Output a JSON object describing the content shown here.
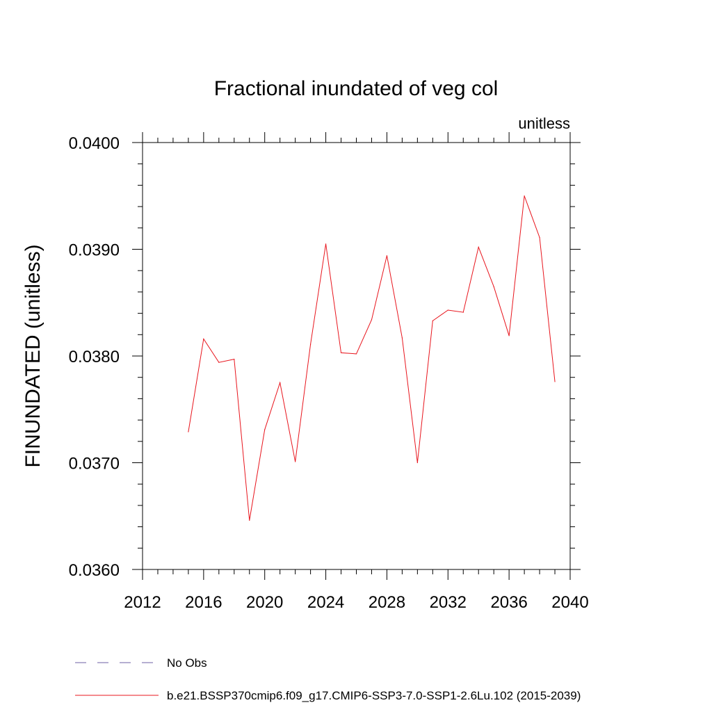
{
  "chart_data": {
    "type": "line",
    "title": "Fractional inundated of veg col",
    "units_label": "unitless",
    "xlabel": "",
    "ylabel": "FINUNDATED  (unitless)",
    "xlim": [
      2012,
      2040
    ],
    "ylim": [
      0.036,
      0.04
    ],
    "x_ticks": [
      2012,
      2016,
      2020,
      2024,
      2028,
      2032,
      2036,
      2040
    ],
    "y_ticks": [
      0.036,
      0.037,
      0.038,
      0.039,
      0.04
    ],
    "y_tick_labels": [
      "0.0360",
      "0.0370",
      "0.0380",
      "0.0390",
      "0.0400"
    ],
    "series": [
      {
        "name": "b.e21.BSSP370cmip6.f09_g17.CMIP6-SSP3-7.0-SSP1-2.6Lu.102 (2015-2039)",
        "color": "#e8141c",
        "style": "solid",
        "x": [
          2015,
          2016,
          2017,
          2018,
          2019,
          2020,
          2021,
          2022,
          2023,
          2024,
          2025,
          2026,
          2027,
          2028,
          2029,
          2030,
          2031,
          2032,
          2033,
          2034,
          2035,
          2036,
          2037,
          2038,
          2039
        ],
        "y": [
          0.03729,
          0.03816,
          0.03794,
          0.03797,
          0.03646,
          0.03731,
          0.03775,
          0.03701,
          0.03811,
          0.03905,
          0.03803,
          0.03802,
          0.03834,
          0.03894,
          0.03817,
          0.037,
          0.03833,
          0.03843,
          0.03841,
          0.03902,
          0.03865,
          0.03819,
          0.0395,
          0.03911,
          0.03776
        ]
      }
    ],
    "legend": [
      {
        "label": "No Obs",
        "color": "#6d5fa6",
        "style": "dashed"
      },
      {
        "label": "b.e21.BSSP370cmip6.f09_g17.CMIP6-SSP3-7.0-SSP1-2.6Lu.102 (2015-2039)",
        "color": "#e8141c",
        "style": "solid"
      }
    ]
  }
}
